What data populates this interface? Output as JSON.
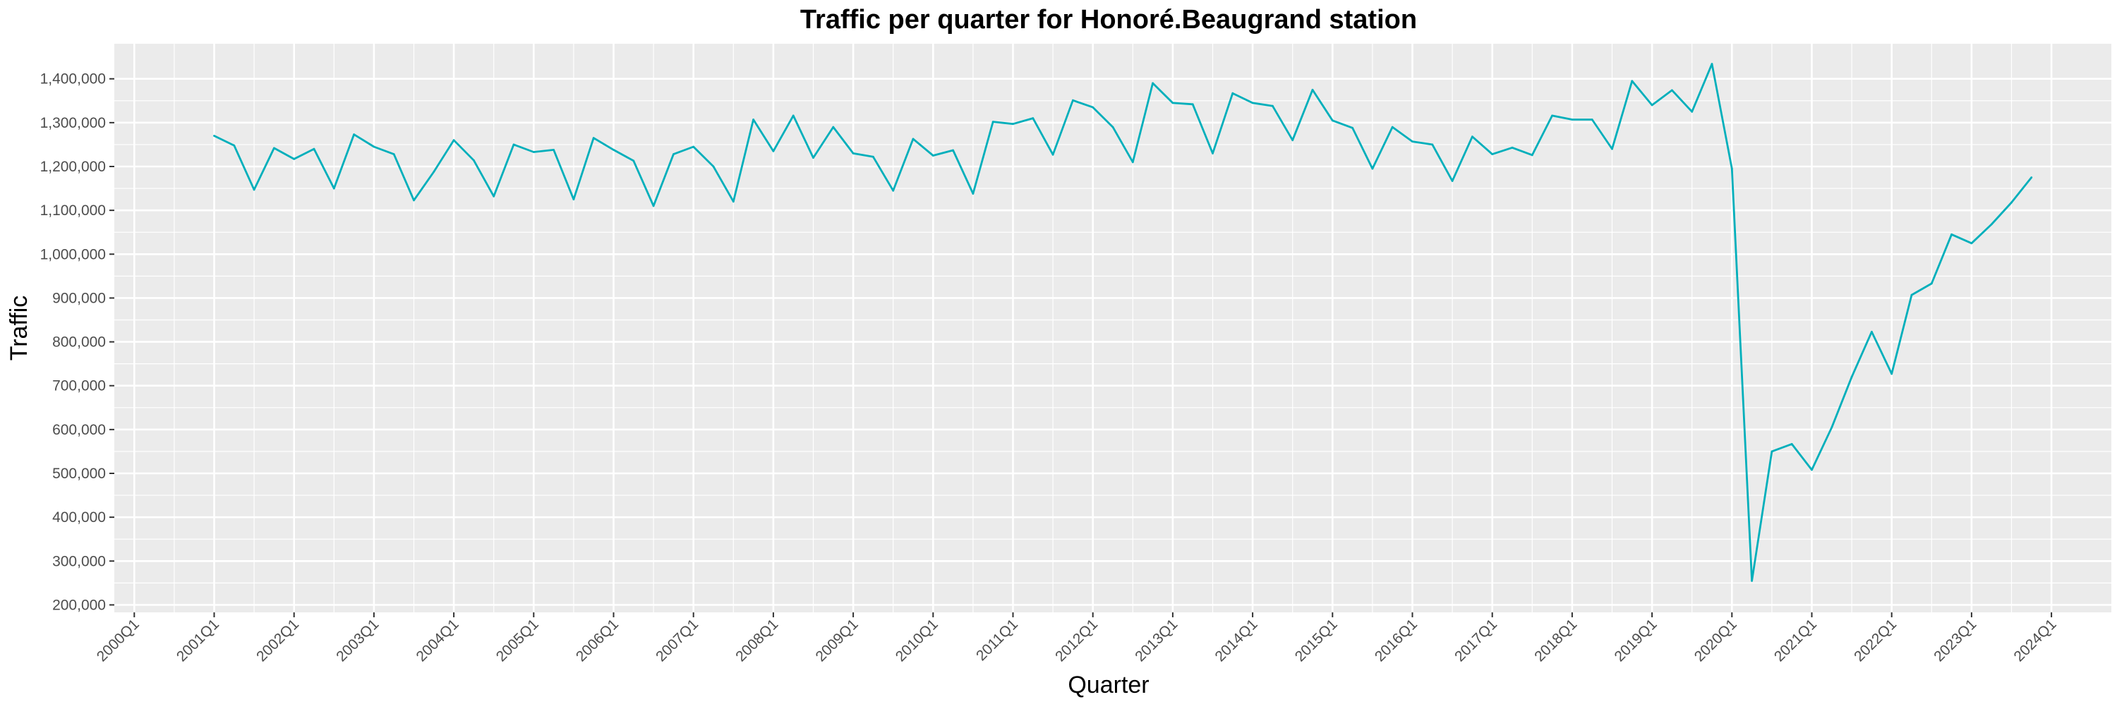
{
  "chart_data": {
    "type": "line",
    "title": "Traffic per quarter for Honoré.Beaugrand station",
    "xlabel": "Quarter",
    "ylabel": "Traffic",
    "x_tick_labels": [
      "2000Q1",
      "2001Q1",
      "2002Q1",
      "2003Q1",
      "2004Q1",
      "2005Q1",
      "2006Q1",
      "2007Q1",
      "2008Q1",
      "2009Q1",
      "2010Q1",
      "2011Q1",
      "2012Q1",
      "2013Q1",
      "2014Q1",
      "2015Q1",
      "2016Q1",
      "2017Q1",
      "2018Q1",
      "2019Q1",
      "2020Q1",
      "2021Q1",
      "2022Q1",
      "2023Q1",
      "2024Q1"
    ],
    "y_tick_labels": [
      "200,000",
      "300,000",
      "400,000",
      "500,000",
      "600,000",
      "700,000",
      "800,000",
      "900,000",
      "1,000,000",
      "1,100,000",
      "1,200,000",
      "1,300,000",
      "1,400,000"
    ],
    "y_ticks": [
      200000,
      300000,
      400000,
      500000,
      600000,
      700000,
      800000,
      900000,
      1000000,
      1100000,
      1200000,
      1300000,
      1400000
    ],
    "ylim": [
      183000,
      1480000
    ],
    "xlim": [
      "1999Q4",
      "2024Q4"
    ],
    "grid": true,
    "legend": "none",
    "line_color": "#00afbb",
    "panel_color": "#ebebeb",
    "grid_color": "#ffffff",
    "series": [
      {
        "x": [
          "2001Q1",
          "2001Q2",
          "2001Q3",
          "2001Q4",
          "2002Q1",
          "2002Q2",
          "2002Q3",
          "2002Q4",
          "2003Q1",
          "2003Q2",
          "2003Q3",
          "2003Q4",
          "2004Q1",
          "2004Q2",
          "2004Q3",
          "2004Q4",
          "2005Q1",
          "2005Q2",
          "2005Q3",
          "2005Q4",
          "2006Q1",
          "2006Q2",
          "2006Q3",
          "2006Q4",
          "2007Q1",
          "2007Q2",
          "2007Q3",
          "2007Q4",
          "2008Q1",
          "2008Q2",
          "2008Q3",
          "2008Q4",
          "2009Q1",
          "2009Q2",
          "2009Q3",
          "2009Q4",
          "2010Q1",
          "2010Q2",
          "2010Q3",
          "2010Q4",
          "2011Q1",
          "2011Q2",
          "2011Q3",
          "2011Q4",
          "2012Q1",
          "2012Q2",
          "2012Q3",
          "2012Q4",
          "2013Q1",
          "2013Q2",
          "2013Q3",
          "2013Q4",
          "2014Q1",
          "2014Q2",
          "2014Q3",
          "2014Q4",
          "2015Q1",
          "2015Q2",
          "2015Q3",
          "2015Q4",
          "2016Q1",
          "2016Q2",
          "2016Q3",
          "2016Q4",
          "2017Q1",
          "2017Q2",
          "2017Q3",
          "2017Q4",
          "2018Q1",
          "2018Q2",
          "2018Q3",
          "2018Q4",
          "2019Q1",
          "2019Q2",
          "2019Q3",
          "2019Q4",
          "2020Q1",
          "2020Q2",
          "2020Q3",
          "2020Q4",
          "2021Q1",
          "2021Q2",
          "2021Q3",
          "2021Q4",
          "2022Q1",
          "2022Q2",
          "2022Q3",
          "2022Q4",
          "2023Q1",
          "2023Q2",
          "2023Q3",
          "2023Q4"
        ],
        "values": [
          1270000,
          1248000,
          1147000,
          1242000,
          1217000,
          1240000,
          1150000,
          1273000,
          1245000,
          1228000,
          1123000,
          1188000,
          1260000,
          1214000,
          1132000,
          1250000,
          1233000,
          1238000,
          1125000,
          1265000,
          1238000,
          1213000,
          1110000,
          1228000,
          1245000,
          1200000,
          1120000,
          1307000,
          1235000,
          1316000,
          1220000,
          1290000,
          1230000,
          1222000,
          1145000,
          1263000,
          1225000,
          1237000,
          1138000,
          1302000,
          1297000,
          1310000,
          1227000,
          1351000,
          1335000,
          1290000,
          1210000,
          1390000,
          1345000,
          1342000,
          1230000,
          1367000,
          1345000,
          1338000,
          1260000,
          1375000,
          1305000,
          1288000,
          1195000,
          1290000,
          1257000,
          1250000,
          1167000,
          1268000,
          1228000,
          1243000,
          1226000,
          1316000,
          1307000,
          1307000,
          1240000,
          1395000,
          1340000,
          1374000,
          1325000,
          1434000,
          1195000,
          255000,
          550000,
          567000,
          508000,
          605000,
          720000,
          823000,
          727000,
          907000,
          933000,
          1045000,
          1025000,
          1068000,
          1118000,
          1175000
        ]
      }
    ]
  }
}
